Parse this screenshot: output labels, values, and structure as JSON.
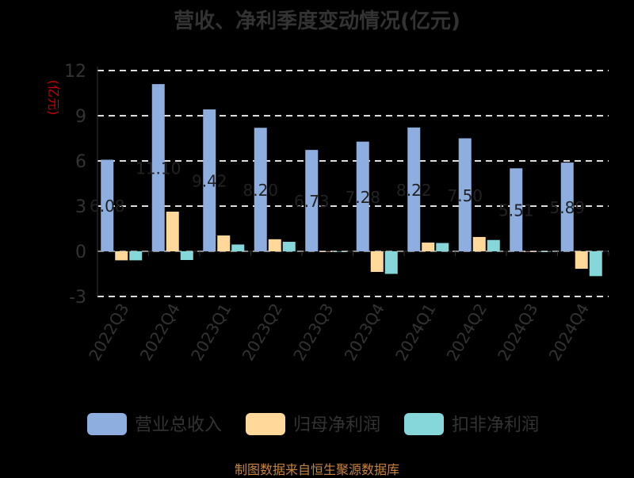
{
  "chart_data": {
    "type": "bar",
    "title": "营收、净利季度变动情况(亿元)",
    "ylabel": "(亿元)",
    "ylim": [
      -3,
      12
    ],
    "yticks": [
      -3,
      0,
      3,
      6,
      9,
      12
    ],
    "grid": true,
    "legend_position": "bottom",
    "categories": [
      "2022Q3",
      "2022Q4",
      "2023Q1",
      "2023Q2",
      "2023Q3",
      "2023Q4",
      "2024Q1",
      "2024Q2",
      "2024Q3",
      "2024Q4"
    ],
    "series": [
      {
        "name": "营业总收入",
        "color": "#8eaee0",
        "values": [
          6.08,
          11.1,
          9.42,
          8.2,
          6.73,
          7.28,
          8.22,
          7.5,
          5.51,
          5.89
        ],
        "labels": [
          "6.08",
          "11.10",
          "9.42",
          "8.20",
          "6.73",
          "7.28",
          "8.22",
          "7.50",
          "5.51",
          "5.89"
        ]
      },
      {
        "name": "归母净利润",
        "color": "#ffd89a",
        "values": [
          -0.6,
          2.63,
          1.05,
          0.8,
          0,
          -1.37,
          0.58,
          0.95,
          0,
          -1.16
        ]
      },
      {
        "name": "扣非净利润",
        "color": "#86d7d9",
        "values": [
          -0.6,
          -0.58,
          0.45,
          0.63,
          0,
          -1.5,
          0.55,
          0.75,
          0,
          -1.65
        ]
      }
    ]
  },
  "source": "制图数据来自恒生聚源数据库"
}
